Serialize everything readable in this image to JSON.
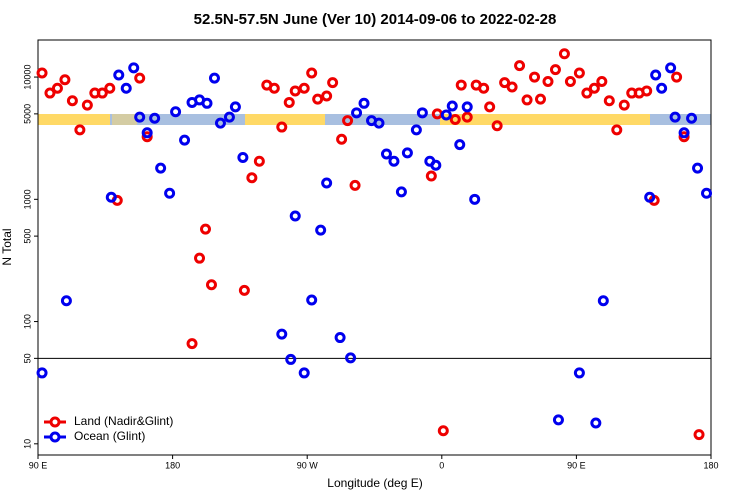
{
  "chart_data": {
    "type": "scatter",
    "title": "52.5N-57.5N June (Ver 10)   2014-09-06 to 2022-02-28",
    "xlabel": "Longitude (deg E)",
    "ylabel": "N Total",
    "xlim": [
      90,
      540
    ],
    "ylim": [
      8.1,
      20100
    ],
    "log_y": true,
    "xticks": [
      {
        "value": 90,
        "label": "90 E"
      },
      180,
      {
        "value": 270,
        "label": "90 W"
      },
      {
        "value": 360,
        "label": "0"
      },
      {
        "value": 450,
        "label": "90 E"
      },
      {
        "value": 540,
        "label": "180"
      }
    ],
    "yticks": [
      10,
      50,
      100,
      500,
      1000,
      5000,
      10000
    ],
    "hline": 50,
    "legend": "lower left",
    "series": [
      {
        "name": "Land (Nadir&Glint)",
        "color": "#ee0000",
        "x": [
          92.7,
          98,
          103,
          108,
          113,
          118,
          123,
          128,
          133,
          138,
          143,
          158,
          163,
          193,
          198,
          202,
          206,
          228,
          233,
          238,
          243,
          248,
          253,
          258,
          262,
          268,
          273,
          277,
          283,
          287,
          293,
          297,
          302,
          353,
          357,
          361,
          369,
          373,
          377,
          383,
          388,
          392,
          397,
          402,
          407,
          412,
          417,
          422,
          426,
          431,
          436,
          442,
          446,
          452,
          457,
          462,
          467,
          472,
          477,
          482,
          487,
          492,
          497,
          502,
          517,
          522,
          532
        ],
        "values": [
          10800,
          7400,
          8100,
          9500,
          6400,
          3700,
          5900,
          7400,
          7400,
          8100,
          980,
          9800,
          3250,
          66,
          330,
          570,
          200,
          180,
          1500,
          2050,
          8600,
          8100,
          3900,
          6200,
          7700,
          8100,
          10800,
          6600,
          7000,
          9000,
          3100,
          4400,
          1300,
          1550,
          5000,
          12.8,
          4500,
          8600,
          4700,
          8600,
          8100,
          5700,
          4000,
          9000,
          8300,
          12400,
          6500,
          10000,
          6600,
          9200,
          11500,
          15500,
          9200,
          10800,
          7400,
          8100,
          9200,
          6400,
          3700,
          5900,
          7400,
          7400,
          7700,
          980,
          10000,
          3250,
          11.9
        ]
      },
      {
        "name": "Ocean (Glint)",
        "color": "#0000ee",
        "x": [
          92.7,
          109,
          139,
          144,
          149,
          154,
          158,
          163,
          168,
          172,
          178,
          182,
          188,
          193,
          198,
          203,
          208,
          212,
          218,
          222,
          227,
          253,
          259,
          262,
          268,
          273,
          279,
          283,
          292,
          299,
          303,
          308,
          313,
          318,
          323,
          328,
          333,
          337,
          343,
          347,
          352,
          356,
          363,
          367,
          372,
          377,
          382,
          438,
          452,
          463,
          468,
          499,
          503,
          507,
          513,
          516,
          522,
          527,
          531,
          537
        ],
        "values": [
          38,
          148,
          1040,
          10400,
          8100,
          11900,
          4700,
          3500,
          4600,
          1800,
          1120,
          5200,
          3050,
          6200,
          6500,
          6100,
          9800,
          4200,
          4700,
          5700,
          2200,
          79,
          49,
          730,
          38,
          150,
          560,
          1360,
          74,
          50.5,
          5100,
          6100,
          4400,
          4200,
          2350,
          2050,
          1150,
          2400,
          3700,
          5100,
          2050,
          1900,
          4900,
          5800,
          2800,
          5700,
          1000,
          15.7,
          38,
          14.8,
          148,
          1040,
          10400,
          8100,
          11900,
          4700,
          3500,
          4600,
          1800,
          1120
        ]
      }
    ]
  }
}
